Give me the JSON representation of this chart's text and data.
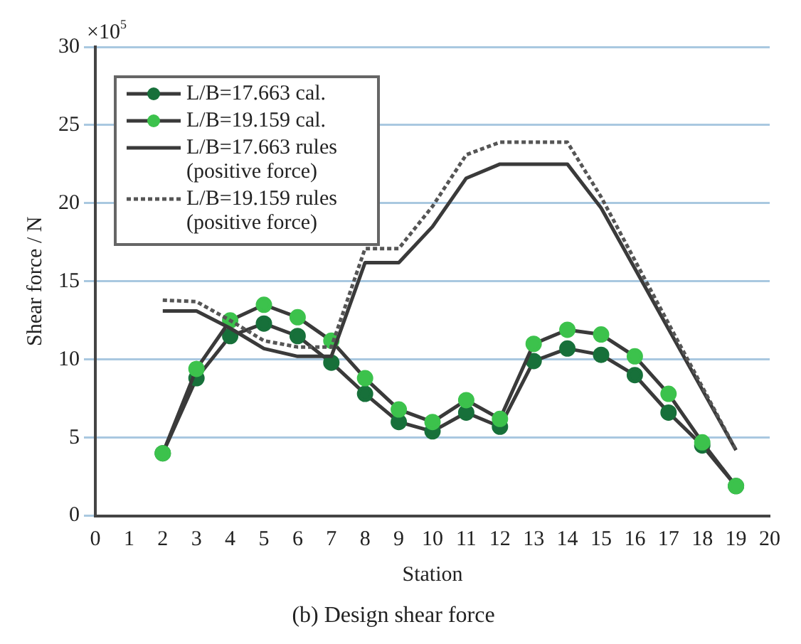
{
  "chart_data": {
    "type": "line",
    "title": "(b) Design shear force",
    "xlabel": "Station",
    "ylabel": "Shear force / N",
    "annotations": [
      "×10$^{5}$"
    ],
    "xlim": [
      0,
      20
    ],
    "xticks": [
      0,
      1,
      2,
      3,
      4,
      5,
      6,
      7,
      8,
      9,
      10,
      11,
      12,
      13,
      14,
      15,
      16,
      17,
      18,
      19,
      20
    ],
    "ylim": [
      0,
      30
    ],
    "yticks": [
      0,
      5,
      10,
      15,
      20,
      25,
      30
    ],
    "grid": "y",
    "legend": "top left",
    "series": [
      {
        "name": "L/B=17.663 cal.",
        "color": "#17703a",
        "marker": "circle",
        "line_style": "solid",
        "x": [
          2,
          3,
          4,
          5,
          6,
          7,
          8,
          9,
          10,
          11,
          12,
          13,
          14,
          15,
          16,
          17,
          18,
          19
        ],
        "values": [
          4,
          8.8,
          11.5,
          12.3,
          11.5,
          9.8,
          7.8,
          6.0,
          5.4,
          6.6,
          5.7,
          9.9,
          10.7,
          10.3,
          9.0,
          6.6,
          4.5,
          1.9
        ]
      },
      {
        "name": "L/B=19.159 cal.",
        "color": "#3cc24c",
        "marker": "circle",
        "line_style": "solid",
        "x": [
          2,
          3,
          4,
          5,
          6,
          7,
          8,
          9,
          10,
          11,
          12,
          13,
          14,
          15,
          16,
          17,
          18,
          19
        ],
        "values": [
          4,
          9.4,
          12.5,
          13.5,
          12.7,
          11.2,
          8.8,
          6.8,
          6.0,
          7.4,
          6.2,
          11.0,
          11.9,
          11.6,
          10.2,
          7.8,
          4.7,
          1.9
        ]
      },
      {
        "name": "L/B=17.663 rules (positive force)",
        "color": "#3a3a3a",
        "marker": "none",
        "line_style": "solid",
        "x": [
          2,
          3,
          4,
          5,
          6,
          7,
          8,
          9,
          10,
          11,
          12,
          13,
          14,
          15,
          19
        ],
        "values": [
          13.1,
          13.1,
          12.0,
          10.7,
          10.2,
          10.2,
          16.2,
          16.2,
          18.5,
          21.6,
          22.5,
          22.5,
          22.5,
          19.7,
          4.2
        ]
      },
      {
        "name": "L/B=19.159 rules (positive force)",
        "color": "#555555",
        "marker": "none",
        "line_style": "dotted",
        "x": [
          2,
          3,
          4,
          5,
          6,
          7,
          8,
          9,
          10,
          11,
          12,
          13,
          14,
          15,
          19
        ],
        "values": [
          13.8,
          13.7,
          12.5,
          11.2,
          10.8,
          10.8,
          17.1,
          17.1,
          19.8,
          23.1,
          23.9,
          23.9,
          23.9,
          20.4,
          4.2
        ]
      }
    ]
  }
}
